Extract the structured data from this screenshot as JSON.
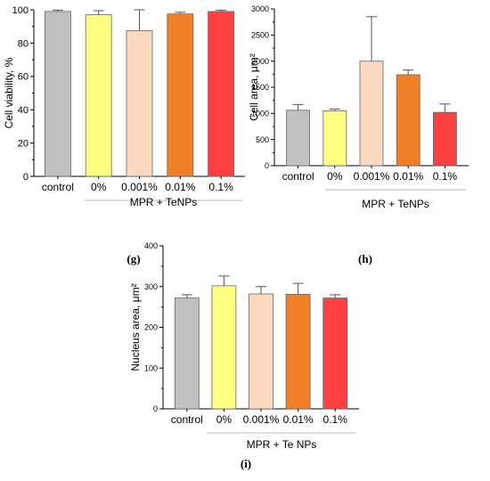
{
  "panel_labels": [
    "(g)",
    "(h)",
    "(i)"
  ],
  "chart_data": [
    {
      "type": "bar",
      "panel": "(g)",
      "ylabel": "Cell viability, %",
      "ylim": [
        0,
        100
      ],
      "yticks": [
        0,
        20,
        40,
        60,
        80,
        100
      ],
      "categories": [
        "control",
        "0%",
        "0.001%",
        "0.01%",
        "0.1%"
      ],
      "values": [
        99,
        97,
        87.5,
        97.5,
        99
      ],
      "errors": [
        0.8,
        2.5,
        12.5,
        1.0,
        0.8
      ],
      "colors": [
        "#c0c0c0",
        "#ffff80",
        "#fad9bf",
        "#f08028",
        "#ff4040"
      ],
      "group_label": "MPR + TeNPs",
      "grid": false
    },
    {
      "type": "bar",
      "panel": "(h)",
      "ylabel": "Cell area, μm²",
      "ylim": [
        0,
        3000
      ],
      "yticks": [
        0,
        500,
        1000,
        1500,
        2000,
        2500,
        3000
      ],
      "categories": [
        "control",
        "0%",
        "0.001%",
        "0.01%",
        "0.1%"
      ],
      "values": [
        1060,
        1050,
        2000,
        1740,
        1020
      ],
      "errors": [
        110,
        35,
        850,
        90,
        160
      ],
      "colors": [
        "#c0c0c0",
        "#ffff80",
        "#fad9bf",
        "#f08028",
        "#ff4040"
      ],
      "group_label": "MPR + TeNPs",
      "grid": false
    },
    {
      "type": "bar",
      "panel": "(i)",
      "ylabel": "Nucleus area, μm²",
      "ylim": [
        0,
        400
      ],
      "yticks": [
        0,
        100,
        200,
        300,
        400
      ],
      "categories": [
        "control",
        "0%",
        "0.001%",
        "0.01%",
        "0.1%"
      ],
      "values": [
        272,
        302,
        282,
        281,
        272
      ],
      "errors": [
        8,
        24,
        18,
        27,
        8
      ],
      "colors": [
        "#c0c0c0",
        "#ffff80",
        "#fad9bf",
        "#f08028",
        "#ff4040"
      ],
      "group_label": "MPR + Te NPs",
      "grid": false
    }
  ]
}
